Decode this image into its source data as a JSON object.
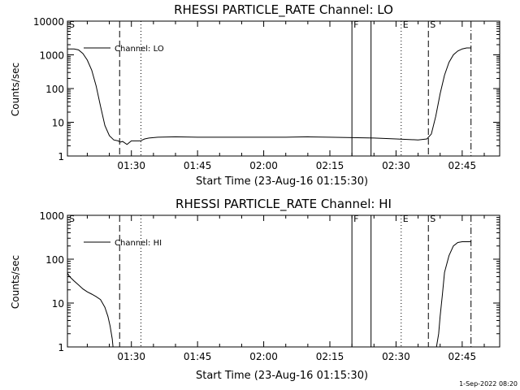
{
  "chart_data": [
    {
      "type": "line",
      "title": "RHESSI PARTICLE_RATE Channel: LO",
      "xlabel": "Start Time (23-Aug-16 01:15:30)",
      "ylabel": "Counts/sec",
      "yscale": "log",
      "ylim": [
        1,
        10000
      ],
      "xlim": [
        "01:15:30",
        "02:53:30"
      ],
      "y_ticks": [
        "1",
        "10",
        "100",
        "1000",
        "10000"
      ],
      "x_ticks": [
        "01:30",
        "01:45",
        "02:00",
        "02:15",
        "02:30",
        "02:45"
      ],
      "legend": {
        "label": "Channel: LO",
        "placement": "top-left"
      },
      "markers": [
        {
          "label": "S",
          "time": "01:15:30",
          "style": "dash-dot"
        },
        {
          "label": "",
          "time": "01:27:20",
          "style": "dashed"
        },
        {
          "label": "",
          "time": "01:32:10",
          "style": "dotted"
        },
        {
          "label": "F",
          "time": "02:20:00",
          "style": "solid"
        },
        {
          "label": "",
          "time": "02:24:20",
          "style": "solid"
        },
        {
          "label": "E",
          "time": "02:31:10",
          "style": "dotted"
        },
        {
          "label": "S",
          "time": "02:37:20",
          "style": "dashed"
        },
        {
          "label": "",
          "time": "02:47:00",
          "style": "dash-dot"
        }
      ],
      "series": [
        {
          "name": "Channel: LO",
          "x": [
            "01:15:30",
            "01:17:00",
            "01:18:00",
            "01:19:00",
            "01:20:00",
            "01:21:00",
            "01:22:00",
            "01:23:00",
            "01:24:00",
            "01:25:00",
            "01:26:00",
            "01:27:00",
            "01:27:30",
            "01:28:00",
            "01:29:00",
            "01:30:00",
            "01:31:00",
            "01:32:00",
            "01:33:00",
            "01:34:00",
            "01:36:00",
            "01:40:00",
            "01:45:00",
            "01:50:00",
            "01:55:00",
            "02:00:00",
            "02:05:00",
            "02:10:00",
            "02:15:00",
            "02:20:00",
            "02:25:00",
            "02:30:00",
            "02:35:00",
            "02:37:00",
            "02:38:00",
            "02:39:00",
            "02:40:00",
            "02:41:00",
            "02:42:00",
            "02:43:00",
            "02:44:00",
            "02:45:00",
            "02:46:00",
            "02:47:00"
          ],
          "y": [
            1500,
            1500,
            1400,
            1100,
            700,
            350,
            120,
            30,
            8,
            4,
            3,
            2.8,
            2.6,
            2.7,
            2.2,
            2.8,
            2.8,
            2.8,
            3.2,
            3.4,
            3.6,
            3.7,
            3.6,
            3.6,
            3.6,
            3.6,
            3.6,
            3.7,
            3.6,
            3.5,
            3.4,
            3.2,
            3.0,
            3.2,
            4.5,
            15,
            70,
            250,
            600,
            1000,
            1300,
            1500,
            1600,
            1600
          ]
        }
      ]
    },
    {
      "type": "line",
      "title": "RHESSI PARTICLE_RATE Channel: HI",
      "xlabel": "Start Time (23-Aug-16 01:15:30)",
      "ylabel": "Counts/sec",
      "yscale": "log",
      "ylim": [
        1,
        1000
      ],
      "xlim": [
        "01:15:30",
        "02:53:30"
      ],
      "y_ticks": [
        "1",
        "10",
        "100",
        "1000"
      ],
      "x_ticks": [
        "01:30",
        "01:45",
        "02:00",
        "02:15",
        "02:30",
        "02:45"
      ],
      "legend": {
        "label": "Channel: HI",
        "placement": "top-left"
      },
      "markers": [
        {
          "label": "S",
          "time": "01:15:30",
          "style": "dash-dot"
        },
        {
          "label": "",
          "time": "01:27:20",
          "style": "dashed"
        },
        {
          "label": "",
          "time": "01:32:10",
          "style": "dotted"
        },
        {
          "label": "F",
          "time": "02:20:00",
          "style": "solid"
        },
        {
          "label": "",
          "time": "02:24:20",
          "style": "solid"
        },
        {
          "label": "E",
          "time": "02:31:10",
          "style": "dotted"
        },
        {
          "label": "S",
          "time": "02:37:20",
          "style": "dashed"
        },
        {
          "label": "",
          "time": "02:47:00",
          "style": "dash-dot"
        }
      ],
      "series": [
        {
          "name": "Channel: HI",
          "x": [
            "01:15:30",
            "01:16:00",
            "01:17:00",
            "01:18:00",
            "01:19:00",
            "01:20:00",
            "01:21:00",
            "01:22:00",
            "01:23:00",
            "01:24:00",
            "01:24:40",
            "01:25:10",
            "01:25:40",
            "01:25:50",
            "02:39:10",
            "02:39:40",
            "02:40:00",
            "02:40:30",
            "02:41:00",
            "02:42:00",
            "02:43:00",
            "02:44:00",
            "02:45:00",
            "02:46:00",
            "02:47:00"
          ],
          "y": [
            48,
            40,
            32,
            26,
            21,
            18,
            16,
            14,
            12,
            8,
            5,
            3,
            1.5,
            1,
            1,
            2,
            5,
            15,
            50,
            120,
            200,
            240,
            250,
            250,
            250
          ]
        }
      ]
    }
  ],
  "footer": {
    "date": "1-Sep-2022 08:20"
  }
}
